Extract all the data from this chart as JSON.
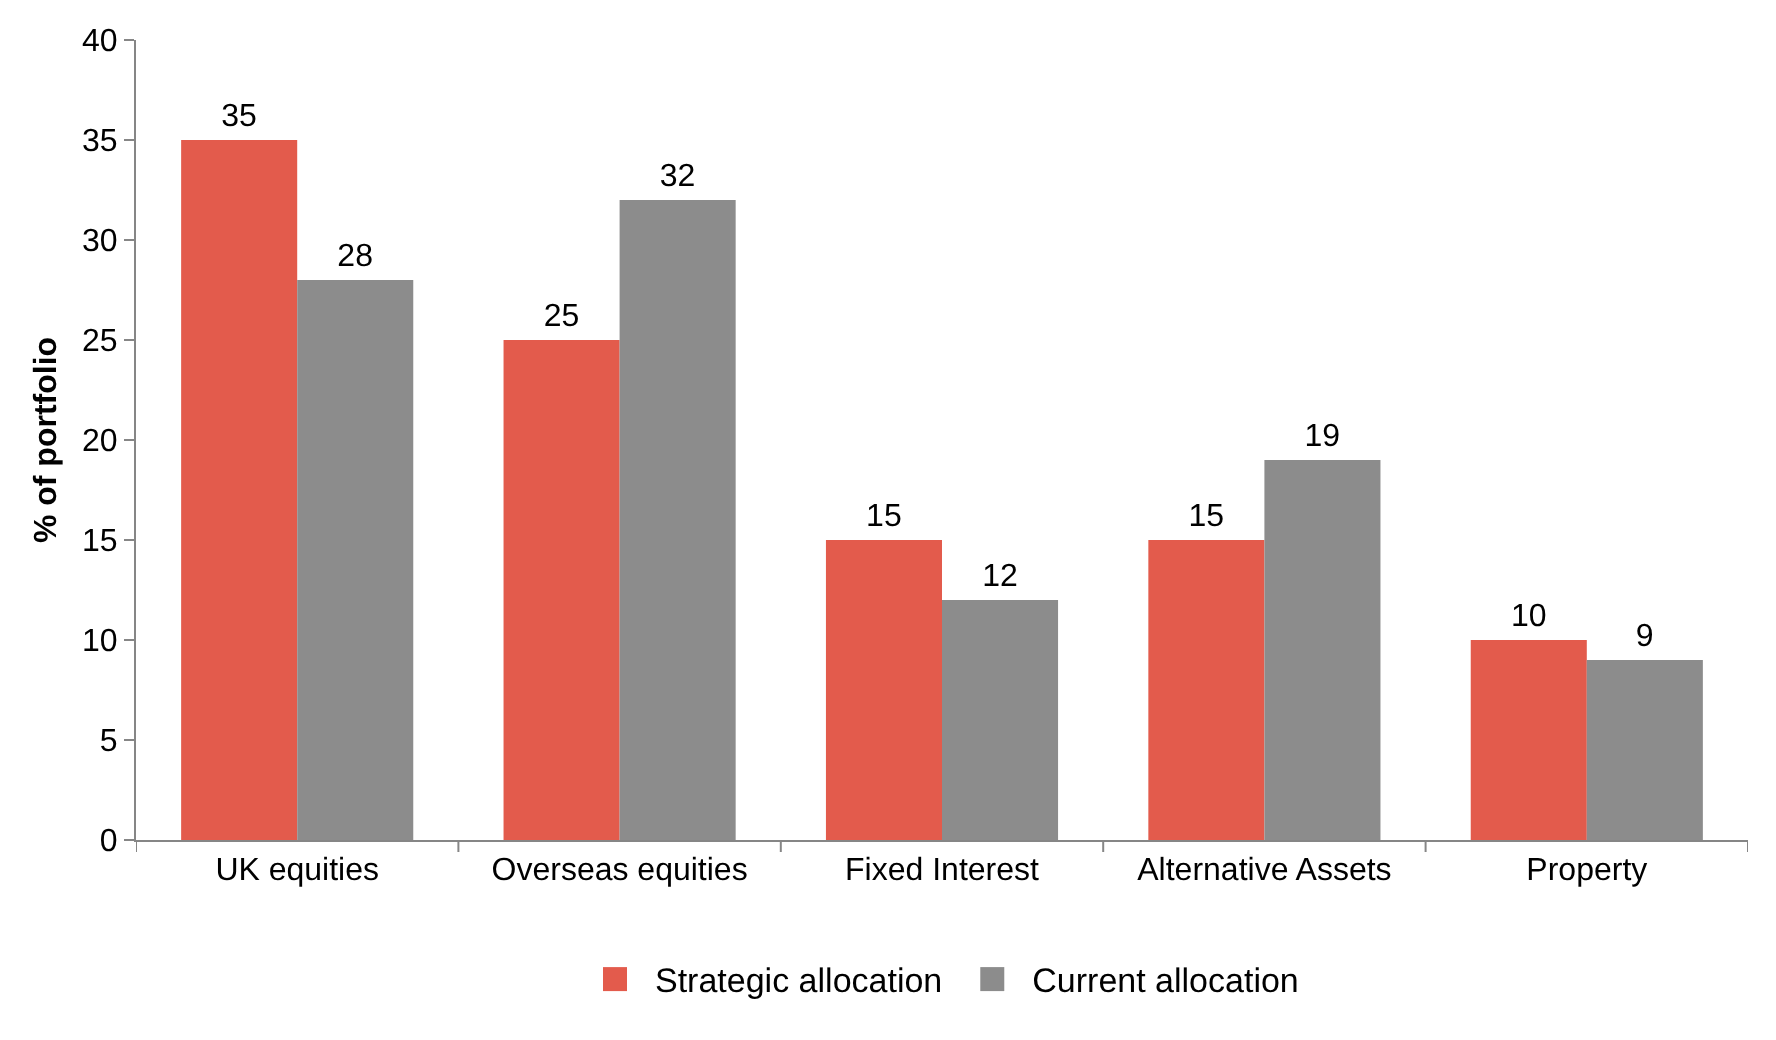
{
  "chart_data": {
    "type": "bar",
    "ylabel": "% of portfolio",
    "categories": [
      "UK equities",
      "Overseas equities",
      "Fixed Interest",
      "Alternative Assets",
      "Property"
    ],
    "series": [
      {
        "name": "Strategic allocation",
        "color": "#e35b4c",
        "values": [
          35,
          25,
          15,
          15,
          10
        ]
      },
      {
        "name": "Current allocation",
        "color": "#8c8c8c",
        "values": [
          28,
          32,
          12,
          19,
          9
        ]
      }
    ],
    "ylim": [
      0,
      40
    ],
    "yticks": [
      0,
      5,
      10,
      15,
      20,
      25,
      30,
      35,
      40
    ],
    "legend": "bottom",
    "data_labels": true
  }
}
